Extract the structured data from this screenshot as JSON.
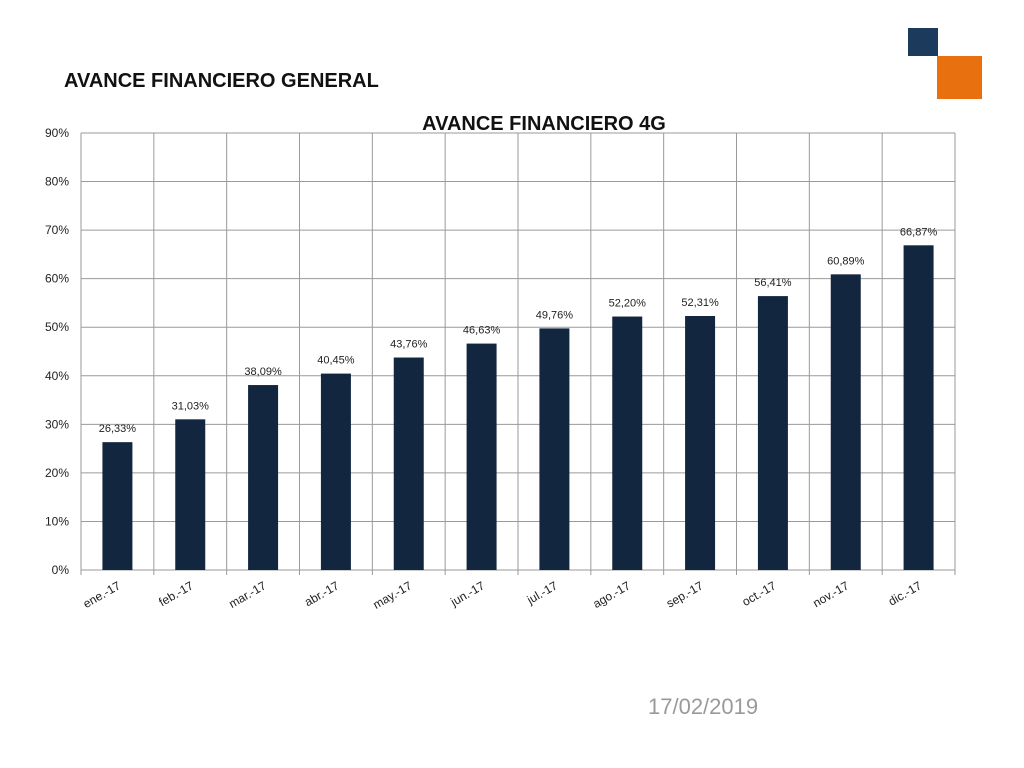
{
  "slide": {
    "title": "AVANCE FINANCIERO GENERAL",
    "date": "17/02/2019"
  },
  "colors": {
    "bar": "#13263f",
    "grid": "#9a9a9a",
    "logo_primary": "#1b3a5c",
    "logo_accent": "#e8700e"
  },
  "chart_data": {
    "type": "bar",
    "title": "AVANCE FINANCIERO 4G",
    "categories": [
      "ene.-17",
      "feb.-17",
      "mar.-17",
      "abr.-17",
      "may.-17",
      "jun.-17",
      "jul.-17",
      "ago.-17",
      "sep.-17",
      "oct.-17",
      "nov.-17",
      "dic.-17"
    ],
    "values": [
      26.33,
      31.03,
      38.09,
      40.45,
      43.76,
      46.63,
      49.76,
      52.2,
      52.31,
      56.41,
      60.89,
      66.87
    ],
    "value_labels": [
      "26,33%",
      "31,03%",
      "38,09%",
      "40,45%",
      "43,76%",
      "46,63%",
      "49,76%",
      "52,20%",
      "52,31%",
      "56,41%",
      "60,89%",
      "66,87%"
    ],
    "y_ticks": [
      "0%",
      "10%",
      "20%",
      "30%",
      "40%",
      "50%",
      "60%",
      "70%",
      "80%",
      "90%"
    ],
    "ylim": [
      0,
      90
    ],
    "xlabel": "",
    "ylabel": "",
    "grid": true,
    "legend": "none"
  }
}
